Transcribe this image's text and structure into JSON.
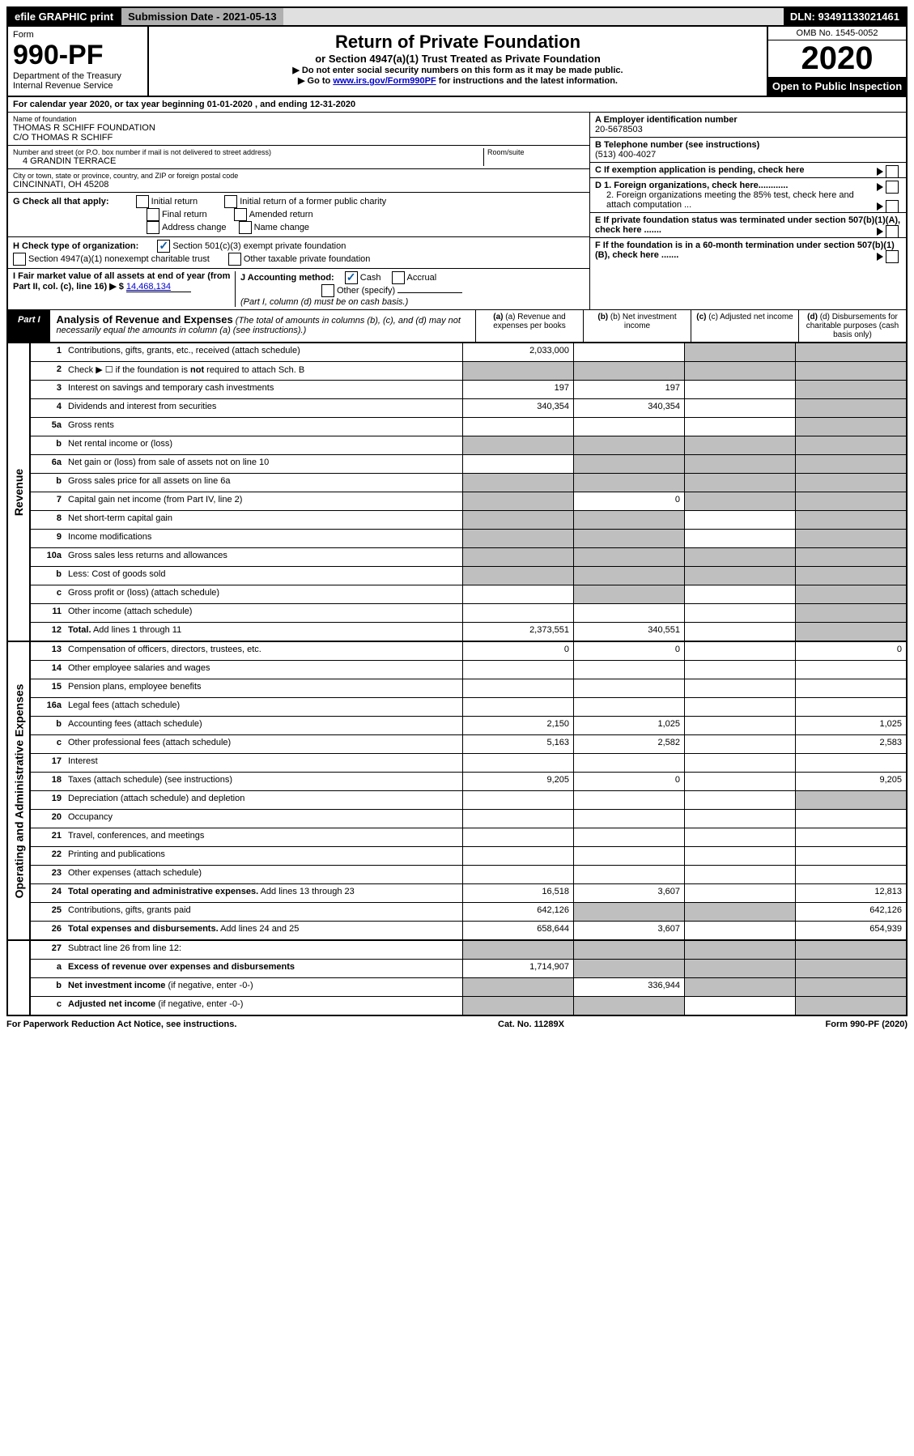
{
  "topbar": {
    "efile": "efile GRAPHIC print",
    "submission": "Submission Date - 2021-05-13",
    "dln": "DLN: 93491133021461"
  },
  "header": {
    "form_word": "Form",
    "form_num": "990-PF",
    "dept": "Department of the Treasury",
    "irs": "Internal Revenue Service",
    "title": "Return of Private Foundation",
    "subtitle": "or Section 4947(a)(1) Trust Treated as Private Foundation",
    "note1": "▶ Do not enter social security numbers on this form as it may be made public.",
    "note2_pre": "▶ Go to ",
    "note2_link": "www.irs.gov/Form990PF",
    "note2_post": " for instructions and the latest information.",
    "omb": "OMB No. 1545-0052",
    "year": "2020",
    "open": "Open to Public Inspection"
  },
  "calyear": {
    "pre": "For calendar year 2020, or tax year beginning ",
    "begin": "01-01-2020",
    "mid": " , and ending ",
    "end": "12-31-2020"
  },
  "entity": {
    "name_label": "Name of foundation",
    "name1": "THOMAS R SCHIFF FOUNDATION",
    "name2": "C/O THOMAS R SCHIFF",
    "addr_label": "Number and street (or P.O. box number if mail is not delivered to street address)",
    "addr": "4 GRANDIN TERRACE",
    "room_label": "Room/suite",
    "city_label": "City or town, state or province, country, and ZIP or foreign postal code",
    "city": "CINCINNATI, OH  45208",
    "ein_label": "A Employer identification number",
    "ein": "20-5678503",
    "phone_label": "B Telephone number (see instructions)",
    "phone": "(513) 400-4027",
    "c_label": "C If exemption application is pending, check here",
    "d1": "D 1. Foreign organizations, check here............",
    "d2": "2. Foreign organizations meeting the 85% test, check here and attach computation ...",
    "e": "E  If private foundation status was terminated under section 507(b)(1)(A), check here .......",
    "f": "F  If the foundation is in a 60-month termination under section 507(b)(1)(B), check here .......",
    "g_label": "G Check all that apply:",
    "g_opts": [
      "Initial return",
      "Final return",
      "Address change",
      "Initial return of a former public charity",
      "Amended return",
      "Name change"
    ],
    "h_label": "H Check type of organization:",
    "h1": "Section 501(c)(3) exempt private foundation",
    "h2": "Section 4947(a)(1) nonexempt charitable trust",
    "h3": "Other taxable private foundation",
    "i_label": "I Fair market value of all assets at end of year (from Part II, col. (c), line 16) ▶ $ ",
    "i_val": "14,468,134",
    "j_label": "J Accounting method:",
    "j_cash": "Cash",
    "j_accrual": "Accrual",
    "j_other": "Other (specify)",
    "j_note": "(Part I, column (d) must be on cash basis.)"
  },
  "part1": {
    "label": "Part I",
    "title": "Analysis of Revenue and Expenses",
    "title_note": " (The total of amounts in columns (b), (c), and (d) may not necessarily equal the amounts in column (a) (see instructions).)",
    "cols": {
      "a": "(a) Revenue and expenses per books",
      "b": "(b) Net investment income",
      "c": "(c) Adjusted net income",
      "d": "(d) Disbursements for charitable purposes (cash basis only)"
    }
  },
  "side_labels": {
    "revenue": "Revenue",
    "opex": "Operating and Administrative Expenses"
  },
  "rows": [
    {
      "n": "1",
      "lbl": "Contributions, gifts, grants, etc., received (attach schedule)",
      "a": "2,033,000",
      "b": "",
      "c": "grey",
      "d": "grey"
    },
    {
      "n": "2",
      "lbl": "Check ▶ ☐ if the foundation is <b>not</b> required to attach Sch. B",
      "a": "grey",
      "b": "grey",
      "c": "grey",
      "d": "grey"
    },
    {
      "n": "3",
      "lbl": "Interest on savings and temporary cash investments",
      "a": "197",
      "b": "197",
      "c": "",
      "d": "grey"
    },
    {
      "n": "4",
      "lbl": "Dividends and interest from securities",
      "a": "340,354",
      "b": "340,354",
      "c": "",
      "d": "grey"
    },
    {
      "n": "5a",
      "lbl": "Gross rents",
      "a": "",
      "b": "",
      "c": "",
      "d": "grey"
    },
    {
      "n": "b",
      "lbl": "Net rental income or (loss)",
      "a": "grey",
      "b": "grey",
      "c": "grey",
      "d": "grey",
      "inline": true
    },
    {
      "n": "6a",
      "lbl": "Net gain or (loss) from sale of assets not on line 10",
      "a": "",
      "b": "grey",
      "c": "grey",
      "d": "grey"
    },
    {
      "n": "b",
      "lbl": "Gross sales price for all assets on line 6a",
      "a": "grey",
      "b": "grey",
      "c": "grey",
      "d": "grey",
      "inline": true
    },
    {
      "n": "7",
      "lbl": "Capital gain net income (from Part IV, line 2)",
      "a": "grey",
      "b": "0",
      "c": "grey",
      "d": "grey"
    },
    {
      "n": "8",
      "lbl": "Net short-term capital gain",
      "a": "grey",
      "b": "grey",
      "c": "",
      "d": "grey"
    },
    {
      "n": "9",
      "lbl": "Income modifications",
      "a": "grey",
      "b": "grey",
      "c": "",
      "d": "grey"
    },
    {
      "n": "10a",
      "lbl": "Gross sales less returns and allowances",
      "a": "grey",
      "b": "grey",
      "c": "grey",
      "d": "grey",
      "inline": true
    },
    {
      "n": "b",
      "lbl": "Less: Cost of goods sold",
      "a": "grey",
      "b": "grey",
      "c": "grey",
      "d": "grey",
      "inline": true
    },
    {
      "n": "c",
      "lbl": "Gross profit or (loss) (attach schedule)",
      "a": "",
      "b": "grey",
      "c": "",
      "d": "grey"
    },
    {
      "n": "11",
      "lbl": "Other income (attach schedule)",
      "a": "",
      "b": "",
      "c": "",
      "d": "grey"
    },
    {
      "n": "12",
      "lbl": "<b>Total.</b> Add lines 1 through 11",
      "a": "2,373,551",
      "b": "340,551",
      "c": "",
      "d": "grey"
    }
  ],
  "rows2": [
    {
      "n": "13",
      "lbl": "Compensation of officers, directors, trustees, etc.",
      "a": "0",
      "b": "0",
      "c": "",
      "d": "0"
    },
    {
      "n": "14",
      "lbl": "Other employee salaries and wages",
      "a": "",
      "b": "",
      "c": "",
      "d": ""
    },
    {
      "n": "15",
      "lbl": "Pension plans, employee benefits",
      "a": "",
      "b": "",
      "c": "",
      "d": ""
    },
    {
      "n": "16a",
      "lbl": "Legal fees (attach schedule)",
      "a": "",
      "b": "",
      "c": "",
      "d": ""
    },
    {
      "n": "b",
      "lbl": "Accounting fees (attach schedule)",
      "a": "2,150",
      "b": "1,025",
      "c": "",
      "d": "1,025"
    },
    {
      "n": "c",
      "lbl": "Other professional fees (attach schedule)",
      "a": "5,163",
      "b": "2,582",
      "c": "",
      "d": "2,583"
    },
    {
      "n": "17",
      "lbl": "Interest",
      "a": "",
      "b": "",
      "c": "",
      "d": ""
    },
    {
      "n": "18",
      "lbl": "Taxes (attach schedule) (see instructions)",
      "a": "9,205",
      "b": "0",
      "c": "",
      "d": "9,205"
    },
    {
      "n": "19",
      "lbl": "Depreciation (attach schedule) and depletion",
      "a": "",
      "b": "",
      "c": "",
      "d": "grey"
    },
    {
      "n": "20",
      "lbl": "Occupancy",
      "a": "",
      "b": "",
      "c": "",
      "d": ""
    },
    {
      "n": "21",
      "lbl": "Travel, conferences, and meetings",
      "a": "",
      "b": "",
      "c": "",
      "d": ""
    },
    {
      "n": "22",
      "lbl": "Printing and publications",
      "a": "",
      "b": "",
      "c": "",
      "d": ""
    },
    {
      "n": "23",
      "lbl": "Other expenses (attach schedule)",
      "a": "",
      "b": "",
      "c": "",
      "d": ""
    },
    {
      "n": "24",
      "lbl": "<b>Total operating and administrative expenses.</b> Add lines 13 through 23",
      "a": "16,518",
      "b": "3,607",
      "c": "",
      "d": "12,813"
    },
    {
      "n": "25",
      "lbl": "Contributions, gifts, grants paid",
      "a": "642,126",
      "b": "grey",
      "c": "grey",
      "d": "642,126"
    },
    {
      "n": "26",
      "lbl": "<b>Total expenses and disbursements.</b> Add lines 24 and 25",
      "a": "658,644",
      "b": "3,607",
      "c": "",
      "d": "654,939"
    }
  ],
  "rows3": [
    {
      "n": "27",
      "lbl": "Subtract line 26 from line 12:",
      "a": "grey",
      "b": "grey",
      "c": "grey",
      "d": "grey"
    },
    {
      "n": "a",
      "lbl": "<b>Excess of revenue over expenses and disbursements</b>",
      "a": "1,714,907",
      "b": "grey",
      "c": "grey",
      "d": "grey"
    },
    {
      "n": "b",
      "lbl": "<b>Net investment income</b> (if negative, enter -0-)",
      "a": "grey",
      "b": "336,944",
      "c": "grey",
      "d": "grey"
    },
    {
      "n": "c",
      "lbl": "<b>Adjusted net income</b> (if negative, enter -0-)",
      "a": "grey",
      "b": "grey",
      "c": "",
      "d": "grey"
    }
  ],
  "footer": {
    "left": "For Paperwork Reduction Act Notice, see instructions.",
    "mid": "Cat. No. 11289X",
    "right": "Form 990-PF (2020)"
  }
}
